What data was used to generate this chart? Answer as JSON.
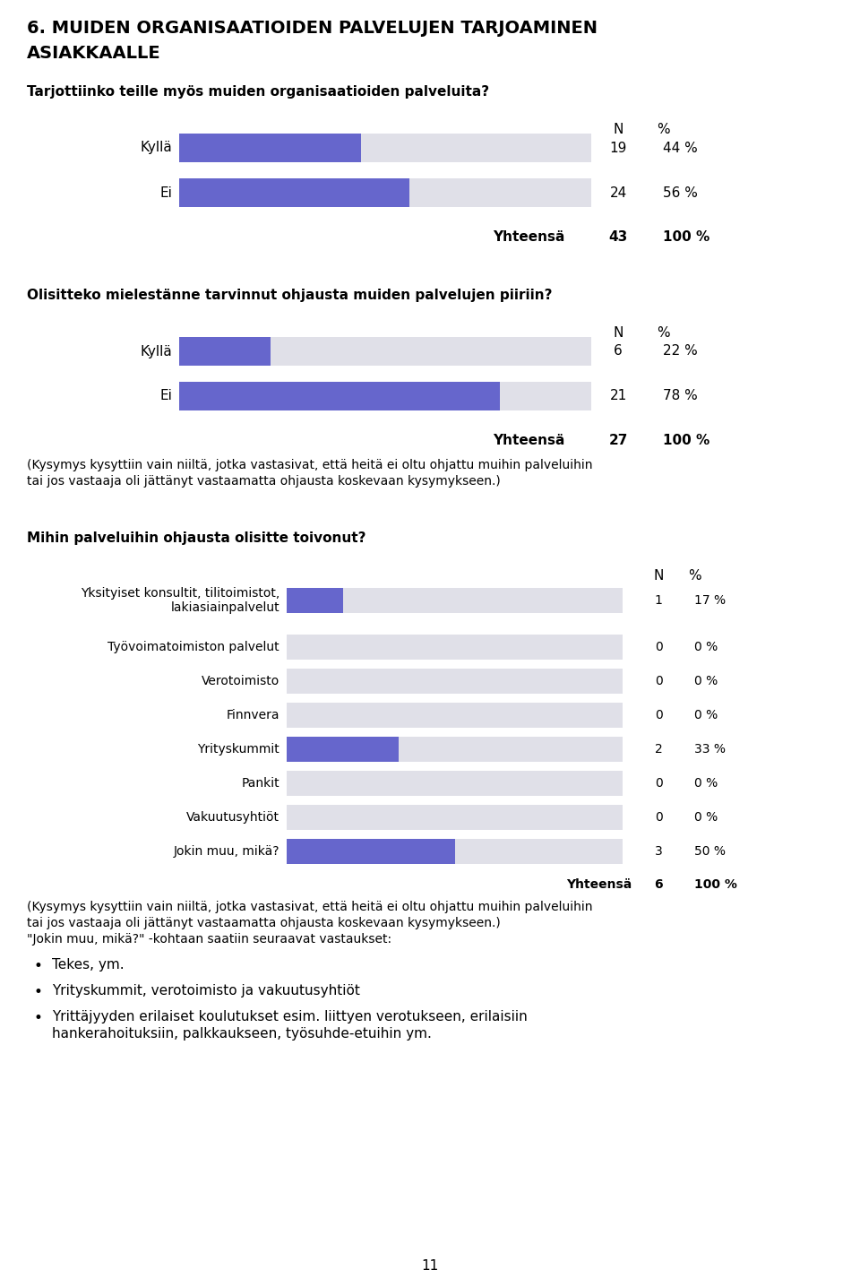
{
  "title_line1": "6. MUIDEN ORGANISAATIOIDEN PALVELUJEN TARJOAMINEN",
  "title_line2": "ASIAKKAALLE",
  "q1_text": "Tarjottiinko teille myös muiden organisaatioiden palveluita?",
  "q1_labels": [
    "Kyllä",
    "Ei"
  ],
  "q1_values": [
    19,
    24
  ],
  "q1_total_n": 43,
  "q1_pcts": [
    44,
    56
  ],
  "q2_text": "Olisitteko mielestänne tarvinnut ohjausta muiden palvelujen piiriin?",
  "q2_labels": [
    "Kyllä",
    "Ei"
  ],
  "q2_values": [
    6,
    21
  ],
  "q2_total_n": 27,
  "q2_pcts": [
    22,
    78
  ],
  "q2_note_line1": "(Kysymys kysyttiin vain niiltä, jotka vastasivat, että heitä ei oltu ohjattu muihin palveluihin",
  "q2_note_line2": "tai jos vastaaja oli jättänyt vastaamatta ohjausta koskevaan kysymykseen.)",
  "q3_text": "Mihin palveluihin ohjausta olisitte toivonut?",
  "q3_labels": [
    "Yksityiset konsultit, tilitoimistot,\nlakiasiainpalvelut",
    "Työvoimatoimiston palvelut",
    "Verotoimisto",
    "Finnvera",
    "Yrityskummit",
    "Pankit",
    "Vakuutusyhtiöt",
    "Jokin muu, mikä?"
  ],
  "q3_values": [
    1,
    0,
    0,
    0,
    2,
    0,
    0,
    3
  ],
  "q3_total_n": 6,
  "q3_pcts": [
    17,
    0,
    0,
    0,
    33,
    0,
    0,
    50
  ],
  "q3_note_line1": "(Kysymys kysyttiin vain niiltä, jotka vastasivat, että heitä ei oltu ohjattu muihin palveluihin",
  "q3_note_line2": "tai jos vastaaja oli jättänyt vastaamatta ohjausta koskevaan kysymykseen.)",
  "q3_note_line3": "\"Jokin muu, mikä?\" -kohtaan saatiin seuraavat vastaukset:",
  "bullet_points": [
    "Tekes, ym.",
    "Yrityskummit, verotoimisto ja vakuutusyhtiöt",
    "Yrittäjyyden erilaiset koulutukset esim. liittyen verotukseen, erilaisiin\nhankerahoituksiin, palkkaukseen, työsuhde-etuihin ym."
  ],
  "bar_color": "#6666cc",
  "bg_bar_color": "#e0e0e8",
  "bar_max": 43,
  "q2_bar_max": 27,
  "q3_bar_max": 6,
  "page_number": "11"
}
